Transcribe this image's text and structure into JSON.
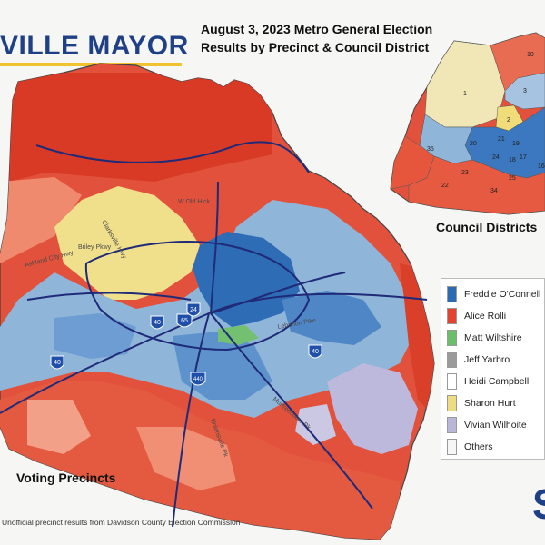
{
  "header": {
    "title": "VILLE MAYOR",
    "subtitle_line1": "August 3, 2023 Metro General Election",
    "subtitle_line2": "Results by Precinct & Council District"
  },
  "main_map": {
    "caption": "Voting Precincts",
    "highway_shields": [
      "65",
      "24",
      "40",
      "40",
      "440",
      "40"
    ],
    "road_labels": [
      "W Old Hick",
      "Ashland City Hwy",
      "Briley Pkwy",
      "Clarksville Hwy",
      "Lebanon Pike",
      "Nolensville Pk",
      "Murfreesboro Pk"
    ]
  },
  "inset_map": {
    "caption": "Council Districts",
    "district_labels": [
      "1",
      "2",
      "3",
      "10",
      "20",
      "21",
      "22",
      "23",
      "24",
      "25",
      "34",
      "35",
      "16",
      "17",
      "18",
      "19"
    ]
  },
  "legend": {
    "items": [
      {
        "label": "Freddie O'Connell",
        "color": "#2c6ab4"
      },
      {
        "label": "Alice Rolli",
        "color": "#e3432f"
      },
      {
        "label": "Matt Wiltshire",
        "color": "#6cbf6a"
      },
      {
        "label": "Jeff Yarbro",
        "color": "#9a9a9a"
      },
      {
        "label": "Heidi Campbell",
        "color": "#ffffff"
      },
      {
        "label": "Sharon Hurt",
        "color": "#eedd80"
      },
      {
        "label": "Vivian Wilhoite",
        "color": "#b9b6d9"
      },
      {
        "label": "Others",
        "color": "#f6f6f6"
      }
    ]
  },
  "source_note": "Unofficial precinct results from Davidson County Election Commission",
  "logo_letter": "S"
}
